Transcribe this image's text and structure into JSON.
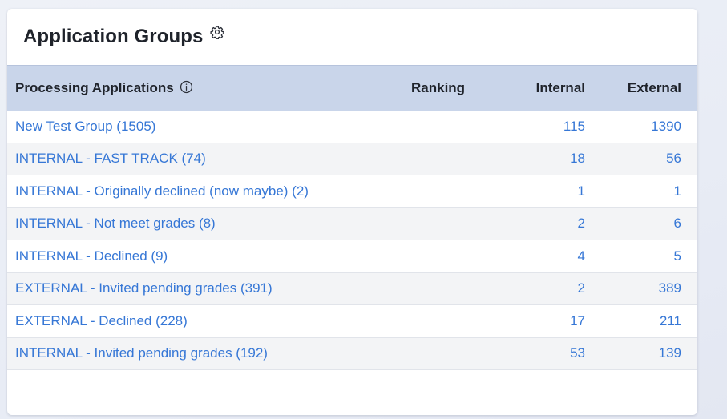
{
  "card": {
    "title": "Application Groups",
    "settings_icon": "gear-icon"
  },
  "table": {
    "headers": {
      "name": "Processing Applications",
      "info_icon": "info-icon",
      "ranking": "Ranking",
      "internal": "Internal",
      "external": "External"
    },
    "rows": [
      {
        "name": "New Test Group (1505)",
        "ranking": "",
        "internal": "115",
        "external": "1390"
      },
      {
        "name": "INTERNAL - FAST TRACK (74)",
        "ranking": "",
        "internal": "18",
        "external": "56"
      },
      {
        "name": "INTERNAL - Originally declined (now maybe) (2)",
        "ranking": "",
        "internal": "1",
        "external": "1"
      },
      {
        "name": "INTERNAL - Not meet grades (8)",
        "ranking": "",
        "internal": "2",
        "external": "6"
      },
      {
        "name": "INTERNAL - Declined (9)",
        "ranking": "",
        "internal": "4",
        "external": "5"
      },
      {
        "name": "EXTERNAL - Invited pending grades (391)",
        "ranking": "",
        "internal": "2",
        "external": "389"
      },
      {
        "name": "EXTERNAL - Declined (228)",
        "ranking": "",
        "internal": "17",
        "external": "211"
      },
      {
        "name": "INTERNAL - Invited pending grades (192)",
        "ranking": "",
        "internal": "53",
        "external": "139"
      }
    ]
  },
  "colors": {
    "header_bg": "#c9d5ea",
    "link": "#3677d6",
    "stripe": "#f3f4f6"
  }
}
